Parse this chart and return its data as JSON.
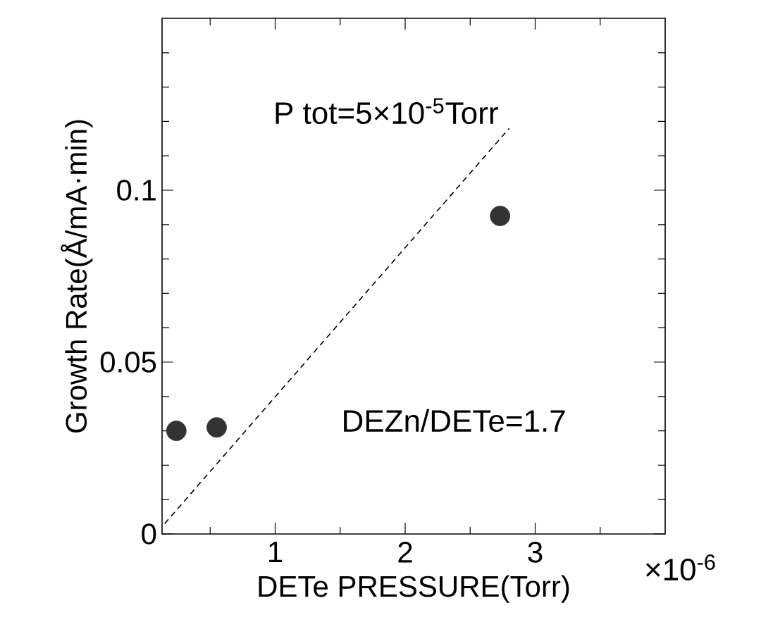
{
  "chart_data": {
    "type": "scatter",
    "xlabel": "DETe PRESSURE(Torr)",
    "ylabel": "Growth Rate(Å/mA·min)",
    "annotations": [
      "P tot=5×10$^{-5}$Torr",
      "DEZn/DETe=1.7",
      "×10$^{-6}$"
    ],
    "xlim": [
      0.13,
      4
    ],
    "ylim": [
      0,
      0.15
    ],
    "xticks": [
      {
        "value": 0.5,
        "label": null
      },
      1,
      {
        "value": 1.5,
        "label": null
      },
      2,
      {
        "value": 2.5,
        "label": null
      },
      3,
      {
        "value": 3.5,
        "label": null
      }
    ],
    "yticks": [
      0,
      {
        "value": 0.01,
        "label": null
      },
      {
        "value": 0.02,
        "label": null
      },
      {
        "value": 0.03,
        "label": null
      },
      {
        "value": 0.04,
        "label": null
      },
      0.05,
      {
        "value": 0.06,
        "label": null
      },
      {
        "value": 0.07,
        "label": null
      },
      {
        "value": 0.08,
        "label": null
      },
      {
        "value": 0.09,
        "label": null
      },
      0.1,
      {
        "value": 0.11,
        "label": null
      },
      {
        "value": 0.12,
        "label": null
      },
      {
        "value": 0.13,
        "label": null
      },
      {
        "value": 0.14,
        "label": null
      }
    ],
    "series": [
      {
        "color": "#333333",
        "marker": "circle",
        "x": [
          0.24,
          0.55,
          2.73
        ],
        "values": [
          0.03,
          0.031,
          0.0925
        ]
      },
      {
        "type": "line",
        "color": "#000000",
        "line_style": "dashed",
        "x": [
          0.15,
          2.8
        ],
        "values": [
          0.003,
          0.118
        ]
      }
    ]
  }
}
